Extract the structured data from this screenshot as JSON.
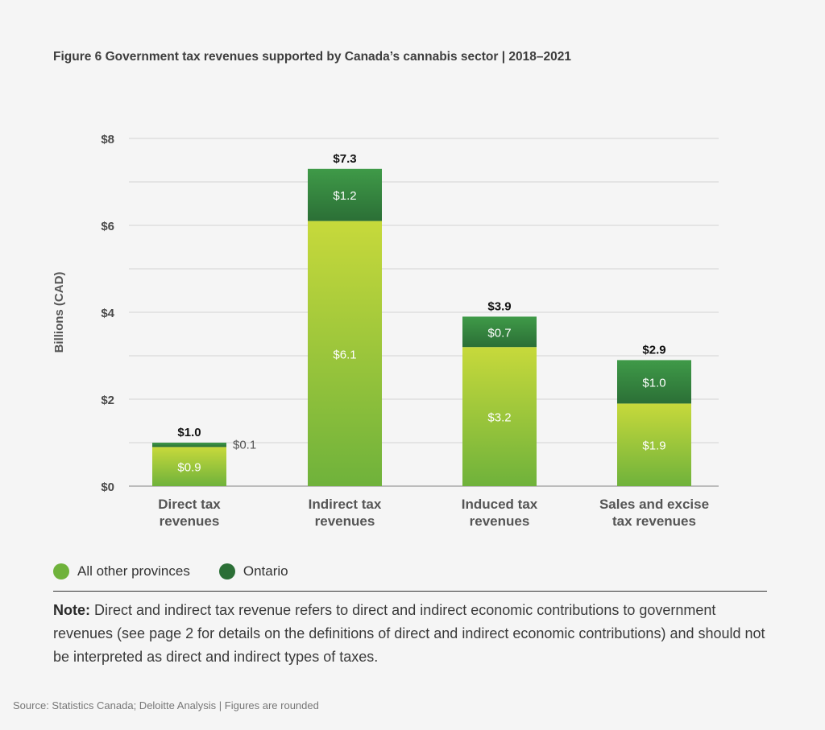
{
  "figure_title": "Figure 6  Government tax revenues supported by Canada’s cannabis sector | 2018–2021",
  "colors": {
    "other_light": "#c7d93b",
    "other_dark": "#6fb23b",
    "ontario_light": "#3f9a48",
    "ontario_dark": "#2b6f36",
    "total_label": "#111111"
  },
  "chart_data": {
    "type": "bar",
    "stacked": true,
    "ylabel": "Billions (CAD)",
    "ylim": [
      0,
      8
    ],
    "yticks": [
      0,
      2,
      4,
      6,
      8
    ],
    "ytick_labels": [
      "$0",
      "$2",
      "$4",
      "$6",
      "$8"
    ],
    "grid": true,
    "categories": [
      [
        "Direct tax",
        "revenues"
      ],
      [
        "Indirect tax",
        "revenues"
      ],
      [
        "Induced tax",
        "revenues"
      ],
      [
        "Sales and excise",
        "tax revenues"
      ]
    ],
    "series": [
      {
        "name": "All other provinces",
        "values": [
          0.9,
          6.1,
          3.2,
          1.9
        ],
        "labels": [
          "$0.9",
          "$6.1",
          "$3.2",
          "$1.9"
        ]
      },
      {
        "name": "Ontario",
        "values": [
          0.1,
          1.2,
          0.7,
          1.0
        ],
        "labels": [
          "$0.1",
          "$1.2",
          "$0.7",
          "$1.0"
        ]
      }
    ],
    "totals": [
      1.0,
      7.3,
      3.9,
      2.9
    ],
    "total_labels": [
      "$1.0",
      "$7.3",
      "$3.9",
      "$2.9"
    ],
    "legend_position": "bottom-left"
  },
  "note": {
    "label": "Note:",
    "text": " Direct and indirect tax revenue refers to direct and indirect economic contributions to government revenues (see page 2 for details on the definitions of direct and indirect economic contributions) and should not be interpreted as direct and indirect types of taxes."
  },
  "source": "Source:  Statistics Canada; Deloitte Analysis | Figures are rounded"
}
